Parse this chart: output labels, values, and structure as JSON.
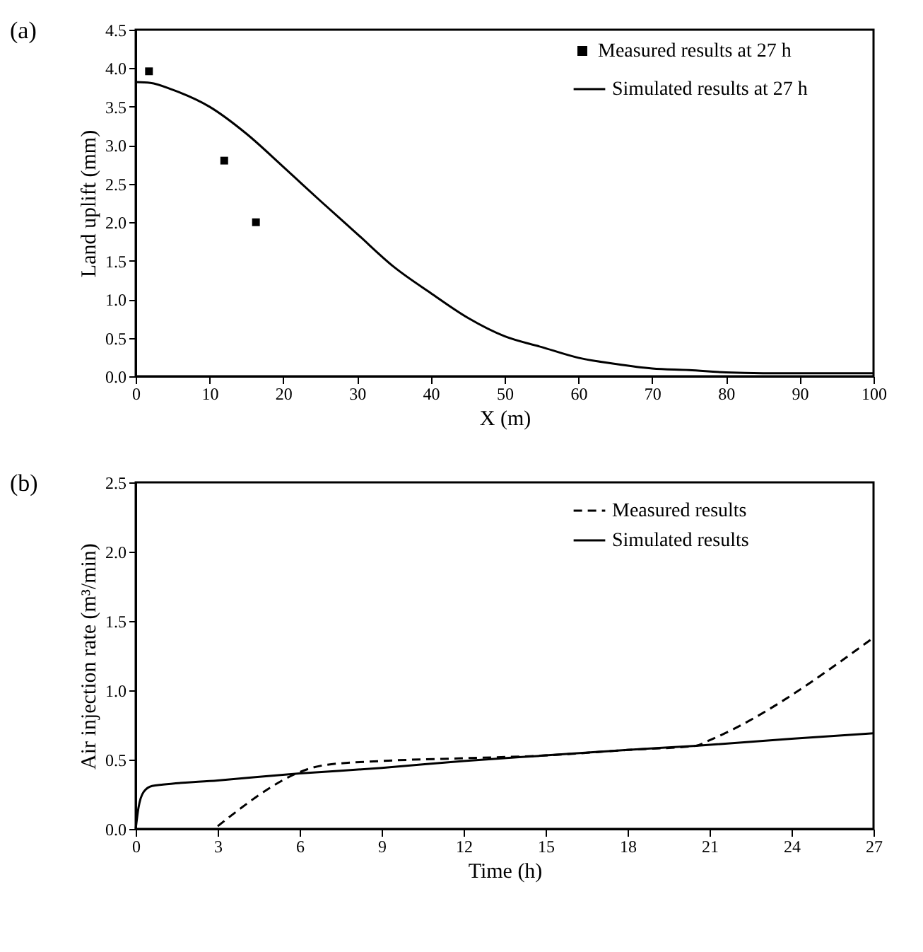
{
  "chart_data": [
    {
      "type": "line",
      "annotations": [
        "(a)"
      ],
      "xlabel": "X (m)",
      "ylabel": "Land uplift (mm)",
      "xlim": [
        0,
        100
      ],
      "ylim": [
        0,
        4.5
      ],
      "xticks": [
        0,
        10,
        20,
        30,
        40,
        50,
        60,
        70,
        80,
        90,
        100
      ],
      "yticks": [
        {
          "value": 0,
          "label": "0.0"
        },
        0.5,
        {
          "value": 1,
          "label": "1.0"
        },
        1.5,
        {
          "value": 2,
          "label": "2.0"
        },
        2.5,
        {
          "value": 3,
          "label": "3.0"
        },
        3.5,
        {
          "value": 4,
          "label": "4.0"
        },
        4.5
      ],
      "grid": false,
      "legend": "top right",
      "series": [
        {
          "name": "Measured results at 27 h",
          "type": "scatter",
          "marker": "square",
          "color": "#000000",
          "x": [
            1.8,
            12,
            16.3
          ],
          "values": [
            3.96,
            2.8,
            2.0
          ]
        },
        {
          "name": "Simulated results at 27 h",
          "type": "line",
          "line_style": "solid",
          "color": "#000000",
          "x": [
            0,
            2,
            5,
            10,
            15,
            20,
            25,
            30,
            35,
            40,
            45,
            50,
            55,
            60,
            65,
            70,
            75,
            80,
            85,
            90,
            100
          ],
          "values": [
            3.82,
            3.81,
            3.72,
            3.5,
            3.15,
            2.72,
            2.28,
            1.85,
            1.42,
            1.08,
            0.76,
            0.52,
            0.38,
            0.24,
            0.16,
            0.1,
            0.08,
            0.05,
            0.04,
            0.04,
            0.04
          ]
        }
      ]
    },
    {
      "type": "line",
      "annotations": [
        "(b)"
      ],
      "xlabel": "Time (h)",
      "ylabel": "Air injection rate (m³/min)",
      "xlim": [
        0,
        27
      ],
      "ylim": [
        0,
        2.5
      ],
      "xticks": [
        0,
        3,
        6,
        9,
        12,
        15,
        18,
        21,
        24,
        27
      ],
      "yticks": [
        {
          "value": 0,
          "label": "0.0"
        },
        0.5,
        {
          "value": 1,
          "label": "1.0"
        },
        1.5,
        {
          "value": 2,
          "label": "2.0"
        },
        2.5
      ],
      "grid": false,
      "legend": "top right",
      "series": [
        {
          "name": "Measured results",
          "type": "line",
          "line_style": "dashed",
          "color": "#000000",
          "x": [
            3,
            6.9,
            9,
            12,
            15,
            18,
            20.5,
            21,
            27
          ],
          "values": [
            0.02,
            0.46,
            0.49,
            0.51,
            0.53,
            0.57,
            0.6,
            0.64,
            1.38
          ]
        },
        {
          "name": "Simulated results",
          "type": "line",
          "line_style": "solid",
          "color": "#000000",
          "x": [
            0,
            0.1,
            0.3,
            0.6,
            1,
            3,
            6,
            9,
            12,
            15,
            18,
            20.5,
            24,
            27
          ],
          "values": [
            0,
            0.15,
            0.27,
            0.31,
            0.32,
            0.35,
            0.4,
            0.44,
            0.49,
            0.53,
            0.57,
            0.6,
            0.65,
            0.69
          ]
        }
      ]
    }
  ]
}
